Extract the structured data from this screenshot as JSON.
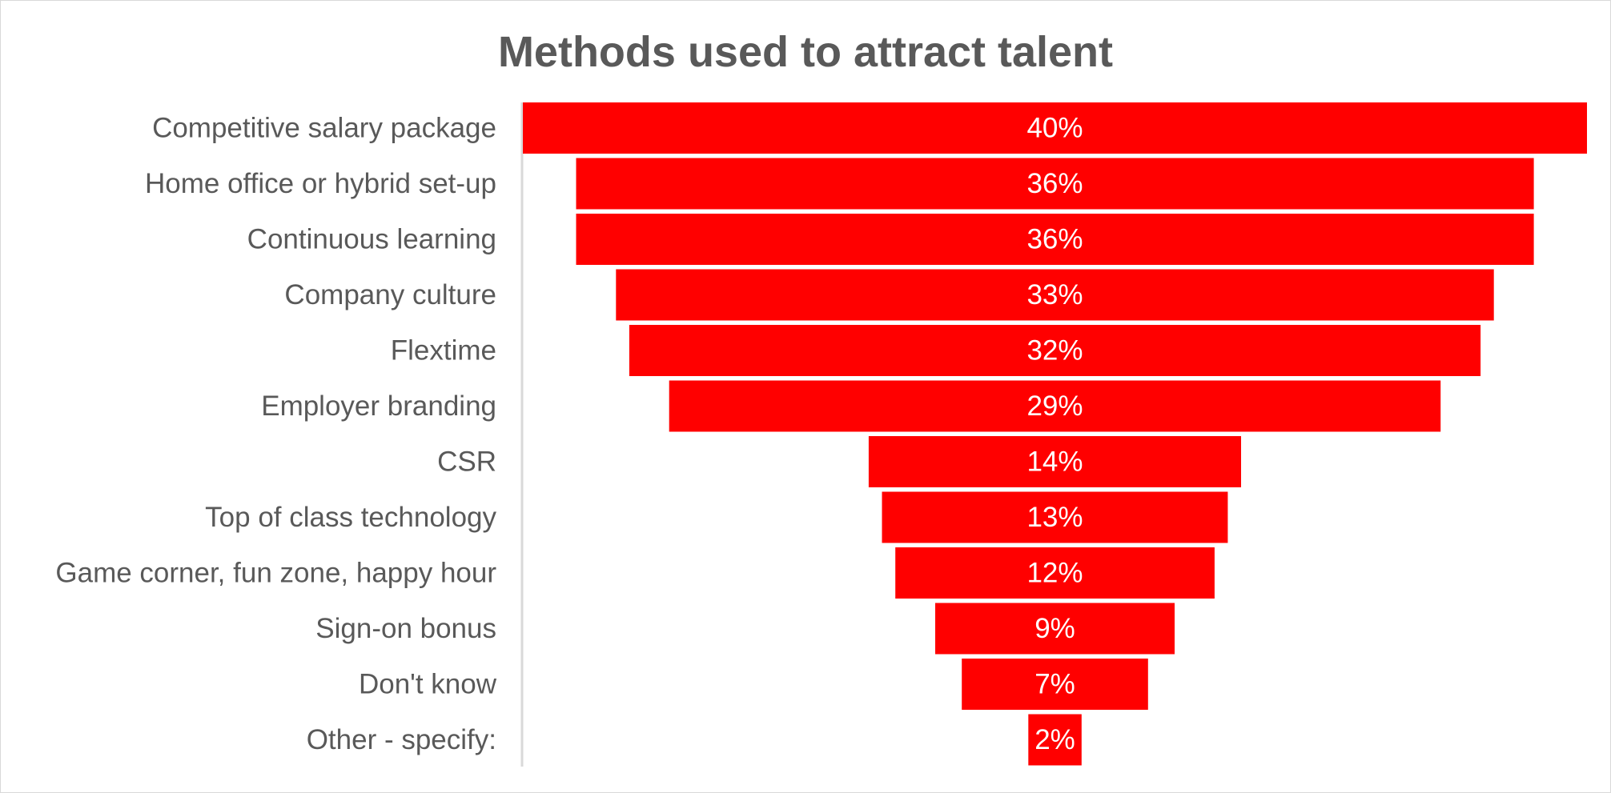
{
  "chart_data": {
    "type": "bar",
    "subtype": "funnel",
    "title": "Methods used to attract talent",
    "xlabel": "",
    "ylabel": "",
    "categories": [
      "Competitive salary package",
      "Home office or hybrid set-up",
      "Continuous learning",
      "Company culture",
      "Flextime",
      "Employer branding",
      "CSR",
      "Top of class technology",
      "Game corner, fun zone, happy hour",
      "Sign-on bonus",
      "Don't know",
      "Other - specify:"
    ],
    "values": [
      40,
      36,
      36,
      33,
      32,
      29,
      14,
      13,
      12,
      9,
      7,
      2
    ],
    "data_labels": [
      "40%",
      "36%",
      "36%",
      "33%",
      "32%",
      "29%",
      "14%",
      "13%",
      "12%",
      "9%",
      "7%",
      "2%"
    ],
    "unit": "%",
    "grid": false,
    "legend": "none",
    "colors": {
      "bar": "#ff0000",
      "bar_label": "#ffffff",
      "text": "#595959",
      "axis": "#d9d9d9"
    }
  }
}
